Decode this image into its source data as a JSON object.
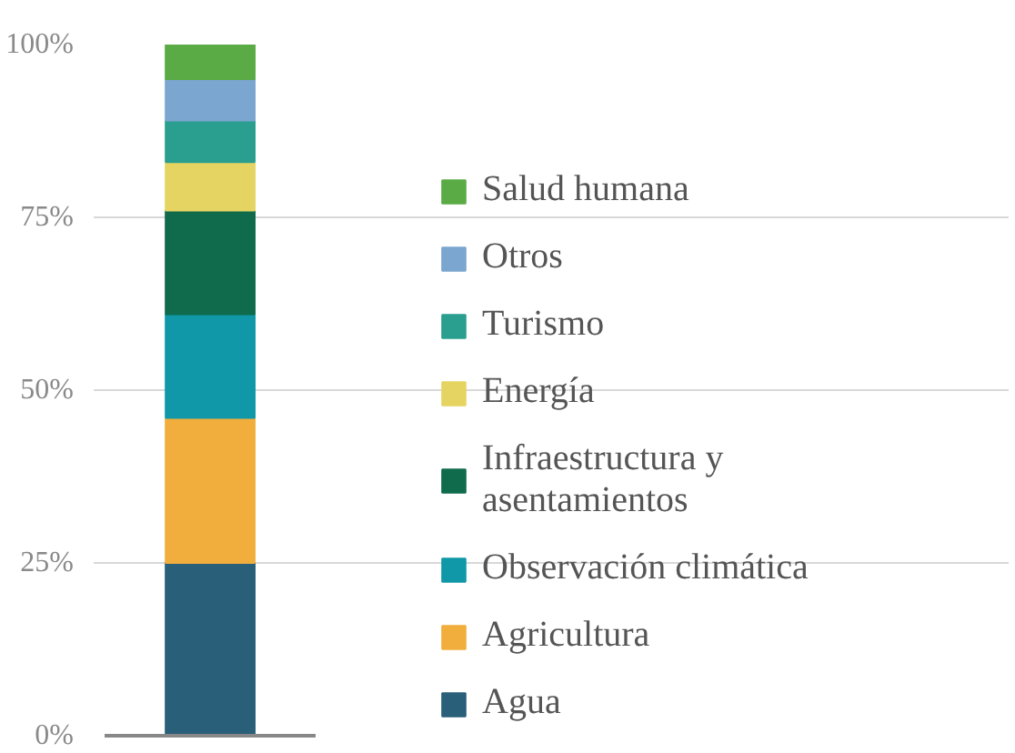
{
  "chart_data": {
    "type": "bar",
    "stacked": true,
    "categories": [
      null
    ],
    "series": [
      {
        "name": "Agua",
        "color": "#2a5f7a",
        "values": [
          25
        ]
      },
      {
        "name": "Agricultura",
        "color": "#f2ae3d",
        "values": [
          21
        ]
      },
      {
        "name": "Observación climática",
        "color": "#1098a8",
        "values": [
          15
        ]
      },
      {
        "name": "Infraestructura y asentamientos",
        "color": "#0f6b4c",
        "values": [
          15
        ]
      },
      {
        "name": "Energía",
        "color": "#e6d462",
        "values": [
          7
        ]
      },
      {
        "name": "Turismo",
        "color": "#2a9f8f",
        "values": [
          6
        ]
      },
      {
        "name": "Otros",
        "color": "#7ba6cf",
        "values": [
          6
        ]
      },
      {
        "name": "Salud humana",
        "color": "#5aab45",
        "values": [
          5
        ]
      }
    ],
    "ylim": [
      0,
      100
    ],
    "yticks": [
      {
        "value": 0,
        "label": "0%"
      },
      {
        "value": 25,
        "label": "25%"
      },
      {
        "value": 50,
        "label": "50%"
      },
      {
        "value": 75,
        "label": "75%"
      },
      {
        "value": 100,
        "label": "100%"
      }
    ],
    "grid": "y",
    "legend": "right",
    "tick_labels": "y"
  }
}
